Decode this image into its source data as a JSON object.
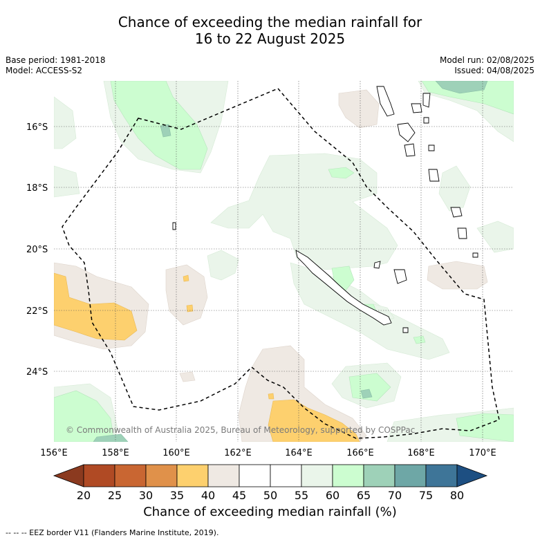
{
  "title_line1": "Chance of exceeding the median rainfall for",
  "title_line2": "16 to 22 August 2025",
  "base_period": "Base period: 1981-2018",
  "model": "Model: ACCESS-S2",
  "model_run": "Model run: 02/08/2025",
  "issued": "Issued: 04/08/2025",
  "copyright": "© Commonwealth of Australia 2025, Bureau of Meteorology, supported by COSPPac",
  "lon_labels": [
    "156°E",
    "158°E",
    "160°E",
    "162°E",
    "164°E",
    "166°E",
    "168°E",
    "170°E"
  ],
  "lat_labels": [
    "16°S",
    "18°S",
    "20°S",
    "22°S",
    "24°S"
  ],
  "colorbar": {
    "title": "Chance of exceeding median rainfall (%)",
    "ticks": [
      "20",
      "25",
      "30",
      "35",
      "40",
      "45",
      "50",
      "55",
      "60",
      "65",
      "70",
      "75",
      "80"
    ],
    "colors": [
      "#8b3a1f",
      "#b04a24",
      "#c96632",
      "#e0914a",
      "#fdd06e",
      "#efe9e3",
      "#ffffff",
      "#ffffff",
      "#eaf5ea",
      "#ccfdd0",
      "#9ed1b8",
      "#6ea7a6",
      "#3e7598",
      "#1d4f82"
    ]
  },
  "footnote": "--  --  -- EEZ border V11 (Flanders Marine Institute, 2019)."
}
